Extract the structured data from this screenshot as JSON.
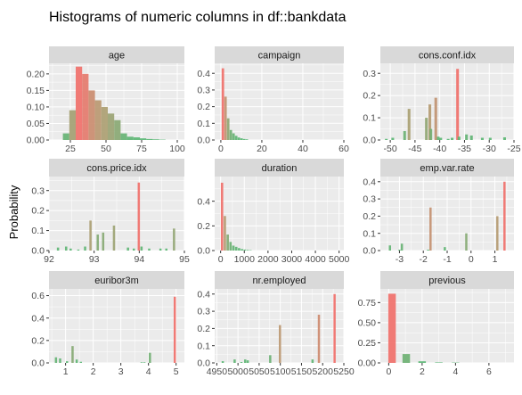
{
  "chart_data": {
    "type": "bar",
    "title": "Histograms of numeric columns in df::bankdata",
    "ylabel": "Probability",
    "colors": {
      "low": "#55b874",
      "mid": "#b59b72",
      "high": "#f0706a",
      "panel_bg": "#ebebeb",
      "strip_bg": "#d9d9d9",
      "grid": "#ffffff"
    },
    "panels": [
      {
        "name": "age",
        "xlim": [
          10,
          105
        ],
        "ylim": [
          0,
          0.232
        ],
        "xticks": [
          25,
          50,
          75,
          100
        ],
        "xtick_labels": [
          "25",
          "50",
          "75",
          "100"
        ],
        "yticks": [
          0,
          0.05,
          0.1,
          0.15,
          0.2
        ],
        "ytick_labels": [
          "0.00",
          "0.05",
          "0.10",
          "0.15",
          "0.20"
        ],
        "bin_width": 4.5,
        "x": [
          22,
          26.5,
          31,
          35.5,
          40,
          44.5,
          49,
          53.5,
          58,
          62.5,
          67,
          71.5,
          76,
          80.5,
          85,
          89.5
        ],
        "values": [
          0.02,
          0.09,
          0.222,
          0.2,
          0.15,
          0.12,
          0.1,
          0.08,
          0.06,
          0.02,
          0.01,
          0.008,
          0.005,
          0.003,
          0.002,
          0.001
        ]
      },
      {
        "name": "campaign",
        "xlim": [
          -3,
          60
        ],
        "ylim": [
          0,
          0.46
        ],
        "xticks": [
          0,
          20,
          40,
          60
        ],
        "xtick_labels": [
          "0",
          "20",
          "40",
          "60"
        ],
        "yticks": [
          0,
          0.1,
          0.2,
          0.3,
          0.4
        ],
        "ytick_labels": [
          "0.0",
          "0.1",
          "0.2",
          "0.3",
          "0.4"
        ],
        "bin_width": 1.2,
        "x": [
          1,
          2.3,
          3.6,
          4.9,
          6.2,
          7.5,
          8.8,
          10.1,
          11.4,
          12.7
        ],
        "values": [
          0.43,
          0.26,
          0.13,
          0.06,
          0.04,
          0.025,
          0.015,
          0.01,
          0.006,
          0.004
        ]
      },
      {
        "name": "cons.conf.idx",
        "xlim": [
          -52,
          -25
        ],
        "ylim": [
          0,
          0.345
        ],
        "xticks": [
          -50,
          -45,
          -40,
          -35,
          -30,
          -25
        ],
        "xtick_labels": [
          "-50",
          "-45",
          "-40",
          "-35",
          "-30",
          "-25"
        ],
        "yticks": [
          0,
          0.1,
          0.2,
          0.3
        ],
        "ytick_labels": [
          "0.0",
          "0.1",
          "0.2",
          "0.3"
        ],
        "bin_width": 0.55,
        "x": [
          -50.8,
          -49.5,
          -47.1,
          -46.2,
          -42.7,
          -42.0,
          -41.8,
          -40.8,
          -40.3,
          -39.8,
          -38.3,
          -37.5,
          -36.4,
          -36.1,
          -34.6,
          -33.6,
          -31.4,
          -29.8,
          -26.9
        ],
        "values": [
          0.005,
          0.01,
          0.04,
          0.14,
          0.1,
          0.16,
          0.05,
          0.19,
          0.015,
          0.01,
          0.005,
          0.01,
          0.32,
          0.015,
          0.025,
          0.02,
          0.01,
          0.01,
          0.012
        ]
      },
      {
        "name": "cons.price.idx",
        "xlim": [
          92,
          95
        ],
        "ylim": [
          0,
          0.37
        ],
        "xticks": [
          92,
          93,
          94,
          95
        ],
        "xtick_labels": [
          "92",
          "93",
          "94",
          "95"
        ],
        "yticks": [
          0,
          0.1,
          0.2,
          0.3
        ],
        "ytick_labels": [
          "0.0",
          "0.1",
          "0.2",
          "0.3"
        ],
        "bin_width": 0.05,
        "x": [
          92.2,
          92.38,
          92.48,
          92.65,
          92.8,
          92.92,
          93.08,
          93.2,
          93.44,
          93.75,
          93.88,
          93.99,
          94.05,
          94.22,
          94.47,
          94.6,
          94.77
        ],
        "values": [
          0.015,
          0.02,
          0.01,
          0.005,
          0.02,
          0.15,
          0.08,
          0.09,
          0.125,
          0.015,
          0.01,
          0.34,
          0.02,
          0.01,
          0.01,
          0.01,
          0.11
        ]
      },
      {
        "name": "duration",
        "xlim": [
          -250,
          5200
        ],
        "ylim": [
          0,
          0.6
        ],
        "xticks": [
          0,
          1000,
          2000,
          3000,
          4000,
          5000
        ],
        "xtick_labels": [
          "0",
          "1000",
          "2000",
          "3000",
          "4000",
          "5000"
        ],
        "yticks": [
          0,
          0.2,
          0.4
        ],
        "ytick_labels": [
          "0.0",
          "0.2",
          "0.4"
        ],
        "bin_width": 100,
        "x": [
          60,
          180,
          300,
          420,
          540,
          660,
          780,
          900,
          1020,
          1140,
          1260
        ],
        "values": [
          0.55,
          0.28,
          0.13,
          0.07,
          0.04,
          0.03,
          0.02,
          0.012,
          0.008,
          0.005,
          0.003
        ]
      },
      {
        "name": "emp.var.rate",
        "xlim": [
          -3.8,
          1.8
        ],
        "ylim": [
          0,
          0.43
        ],
        "xticks": [
          -3,
          -2,
          -1,
          0,
          1
        ],
        "xtick_labels": [
          "-3",
          "-2",
          "-1",
          "0",
          "1"
        ],
        "yticks": [
          0,
          0.1,
          0.2,
          0.3,
          0.4
        ],
        "ytick_labels": [
          "0.0",
          "0.1",
          "0.2",
          "0.3",
          "0.4"
        ],
        "bin_width": 0.09,
        "x": [
          -3.4,
          -3.0,
          -2.9,
          -1.8,
          -1.7,
          -1.1,
          -0.2,
          1.1,
          1.4
        ],
        "values": [
          0.03,
          0.005,
          0.04,
          0.005,
          0.25,
          0.02,
          0.1,
          0.2,
          0.4
        ]
      },
      {
        "name": "euribor3m",
        "xlim": [
          0.4,
          5.3
        ],
        "ylim": [
          0,
          0.66
        ],
        "xticks": [
          1,
          2,
          3,
          4,
          5
        ],
        "xtick_labels": [
          "1",
          "2",
          "3",
          "4",
          "5"
        ],
        "yticks": [
          0,
          0.2,
          0.4,
          0.6
        ],
        "ytick_labels": [
          "0.0",
          "0.2",
          "0.4",
          "0.6"
        ],
        "bin_width": 0.075,
        "x": [
          0.65,
          0.8,
          1.05,
          1.25,
          1.4,
          1.55,
          3.75,
          3.85,
          4.05,
          4.95
        ],
        "values": [
          0.05,
          0.04,
          0.015,
          0.15,
          0.03,
          0.01,
          0.005,
          0.005,
          0.09,
          0.59
        ]
      },
      {
        "name": "nr.employed",
        "xlim": [
          4945,
          5250
        ],
        "ylim": [
          0,
          0.43
        ],
        "xticks": [
          4950,
          5000,
          5050,
          5100,
          5150,
          5200,
          5250
        ],
        "xtick_labels": [
          "4950",
          "5000",
          "5050",
          "5100",
          "5150",
          "5200",
          "5250"
        ],
        "yticks": [
          0,
          0.1,
          0.2,
          0.3,
          0.4
        ],
        "ytick_labels": [
          "0.0",
          "0.1",
          "0.2",
          "0.3",
          "0.4"
        ],
        "bin_width": 5,
        "x": [
          4964,
          4992,
          5008,
          5017,
          5023,
          5076,
          5099,
          5176,
          5191,
          5228
        ],
        "values": [
          0.01,
          0.02,
          0.005,
          0.02,
          0.015,
          0.045,
          0.22,
          0.02,
          0.28,
          0.4
        ]
      },
      {
        "name": "previous",
        "xlim": [
          -0.5,
          7.5
        ],
        "ylim": [
          0,
          0.92
        ],
        "xticks": [
          0,
          2,
          4,
          6
        ],
        "xtick_labels": [
          "0",
          "2",
          "4",
          "6"
        ],
        "yticks": [
          0,
          0.25,
          0.5,
          0.75
        ],
        "ytick_labels": [
          "0.00",
          "0.25",
          "0.50",
          "0.75"
        ],
        "bin_width": 0.45,
        "x": [
          0.2,
          1.05,
          2.0,
          3.0,
          4.0
        ],
        "values": [
          0.86,
          0.11,
          0.02,
          0.006,
          0.004
        ]
      }
    ]
  }
}
